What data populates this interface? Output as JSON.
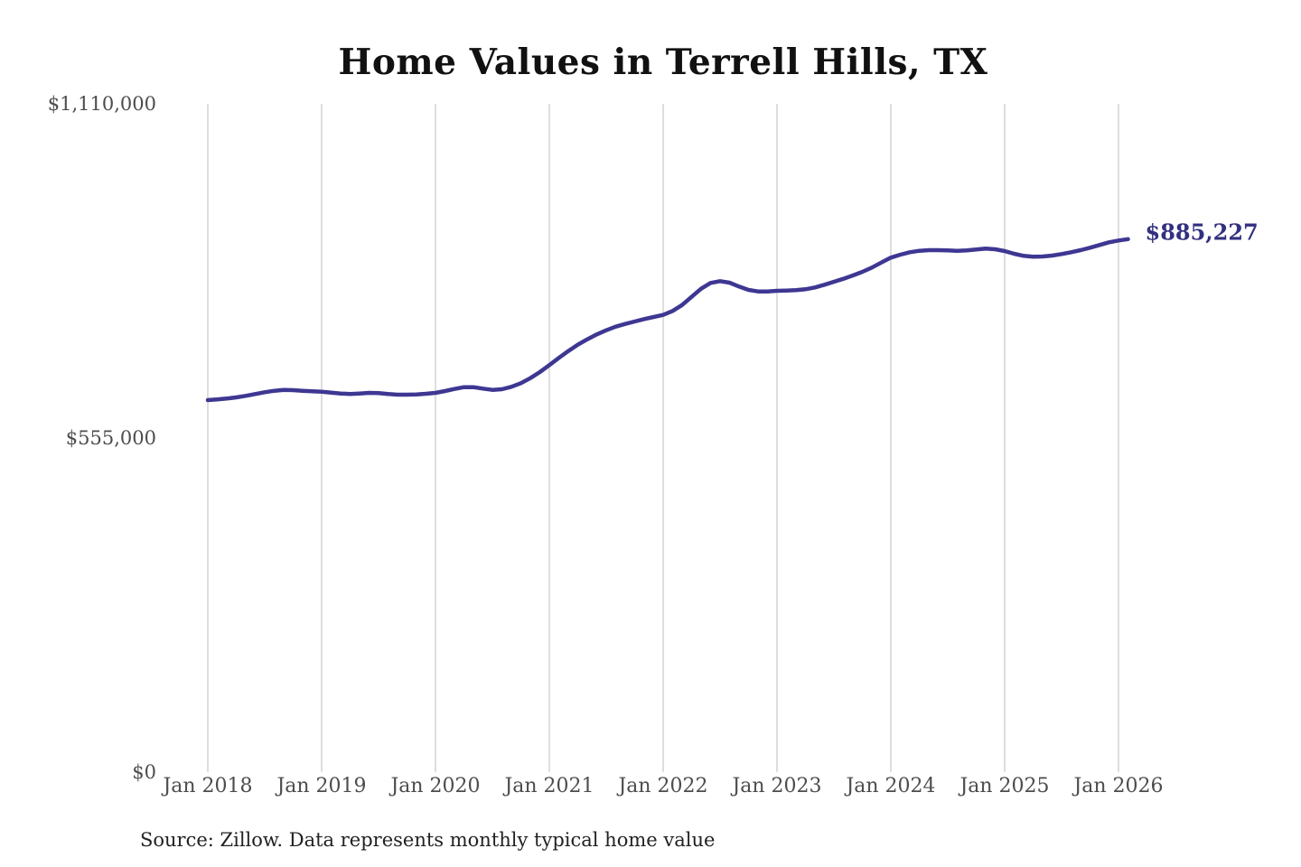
{
  "chart": {
    "title": "Home Values in Terrell Hills, TX",
    "latest_value_label": "$885,227",
    "source_note": "Source: Zillow. Data represents monthly typical home value",
    "colors": {
      "line": "#3e3792",
      "value_label_text": "#333080",
      "gridline": "#cccccc",
      "axis_text": "#4d4d4d",
      "title_text": "#111111",
      "source_text": "#222222",
      "background": "#ffffff"
    }
  },
  "chart_data": {
    "type": "line",
    "title": "Home Values in Terrell Hills, TX",
    "xlabel": "",
    "ylabel": "",
    "legend": "none",
    "grid": "vertical-only",
    "ylim": [
      0,
      1110000
    ],
    "y_ticks": [
      {
        "value": 0,
        "label": "$0"
      },
      {
        "value": 555000,
        "label": "$555,000"
      },
      {
        "value": 1110000,
        "label": "$1,110,000"
      }
    ],
    "x_tick_labels": [
      "Jan 2018",
      "Jan 2019",
      "Jan 2020",
      "Jan 2021",
      "Jan 2022",
      "Jan 2023",
      "Jan 2024",
      "Jan 2025",
      "Jan 2026"
    ],
    "annotation": {
      "text": "$885,227",
      "position": "line-end"
    },
    "series": [
      {
        "name": "Monthly typical home value",
        "start_month": "2018-01",
        "frequency": "monthly",
        "values": [
          618000,
          619000,
          620500,
          622500,
          625000,
          628000,
          631000,
          633500,
          635000,
          634500,
          633500,
          632500,
          632000,
          630500,
          629000,
          628000,
          629000,
          630000,
          629500,
          628000,
          627000,
          627000,
          627500,
          628500,
          630000,
          633000,
          636500,
          639500,
          639500,
          637000,
          635000,
          636000,
          640000,
          646000,
          654500,
          664500,
          676000,
          688000,
          699500,
          710000,
          719000,
          727000,
          734000,
          740000,
          744500,
          748500,
          752500,
          756000,
          759500,
          766000,
          776000,
          789500,
          803000,
          812500,
          815500,
          813000,
          806500,
          801000,
          798500,
          798500,
          799500,
          800000,
          800500,
          802000,
          805000,
          809500,
          814500,
          819500,
          825000,
          831000,
          838000,
          846500,
          854500,
          859500,
          863500,
          866000,
          867000,
          867000,
          866500,
          866000,
          866500,
          868000,
          869500,
          868500,
          865500,
          861000,
          857500,
          856000,
          856500,
          858000,
          860500,
          863500,
          867000,
          871000,
          875500,
          880000,
          883000,
          885227
        ]
      }
    ]
  },
  "layout_note": "single line chart on white background"
}
